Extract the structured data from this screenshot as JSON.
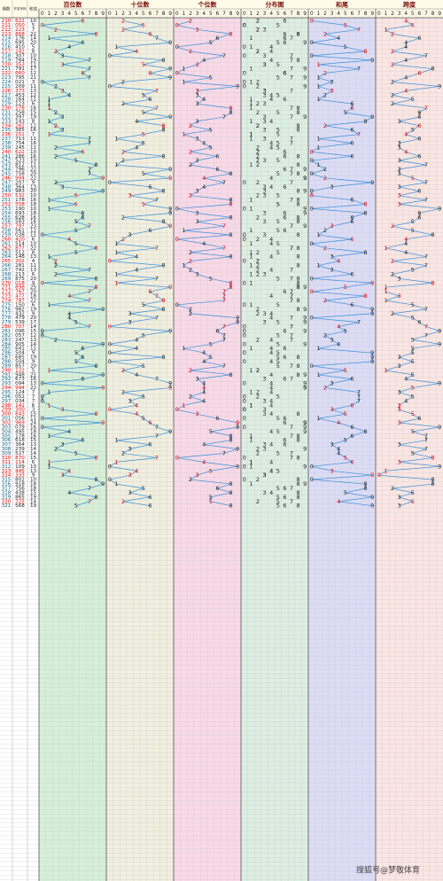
{
  "header": {
    "issue": "期数",
    "number": "开奖号码",
    "sum": "和值",
    "sections": [
      "百位数",
      "十位数",
      "个位数",
      "分布图",
      "和尾",
      "跨度"
    ],
    "digits": [
      "0",
      "1",
      "2",
      "3",
      "4",
      "5",
      "6",
      "7",
      "8",
      "9"
    ]
  },
  "draws": [
    [
      "210",
      "622",
      "10",
      4
    ],
    [
      "211",
      "050",
      "5",
      5
    ],
    [
      "212",
      "223",
      "7",
      1
    ],
    [
      "213",
      "868",
      "22",
      2
    ],
    [
      "214",
      "176",
      "14",
      6
    ],
    [
      "215",
      "695",
      "20",
      4
    ],
    [
      "216",
      "410",
      "5",
      4
    ],
    [
      "217",
      "242",
      "8",
      2
    ],
    [
      "218",
      "307",
      "10",
      7
    ],
    [
      "219",
      "784",
      "19",
      4
    ],
    [
      "220",
      "353",
      "11",
      2
    ],
    [
      "221",
      "791",
      "17",
      8
    ],
    [
      "222",
      "660",
      "12",
      6
    ],
    [
      "223",
      "795",
      "21",
      4
    ],
    [
      "224",
      "021",
      "3",
      2
    ],
    [
      "225",
      "209",
      "11",
      9
    ],
    [
      "226",
      "373",
      "13",
      4
    ],
    [
      "227",
      "453",
      "12",
      2
    ],
    [
      "228",
      "164",
      "11",
      5
    ],
    [
      "229",
      "123",
      "6",
      2
    ],
    [
      "230",
      "178",
      "16",
      7
    ],
    [
      "231",
      "258",
      "15",
      6
    ],
    [
      "232",
      "397",
      "19",
      6
    ],
    [
      "233",
      "143",
      "8",
      3
    ],
    [
      "234",
      "282",
      "12",
      6
    ],
    [
      "235",
      "385",
      "16",
      5
    ],
    [
      "236",
      "151",
      "7",
      4
    ],
    [
      "237",
      "713",
      "11",
      6
    ],
    [
      "238",
      "754",
      "16",
      3
    ],
    [
      "239",
      "245",
      "11",
      3
    ],
    [
      "240",
      "622",
      "10",
      4
    ],
    [
      "241",
      "286",
      "16",
      6
    ],
    [
      "242",
      "523",
      "10",
      3
    ],
    [
      "243",
      "812",
      "11",
      7
    ],
    [
      "244",
      "796",
      "22",
      3
    ],
    [
      "245",
      "758",
      "20",
      3
    ],
    [
      "246",
      "994",
      "22",
      5
    ],
    [
      "247",
      "207",
      "9",
      7
    ],
    [
      "248",
      "364",
      "13",
      3
    ],
    [
      "249",
      "983",
      "20",
      6
    ],
    [
      "250",
      "532",
      "10",
      3
    ],
    [
      "251",
      "178",
      "16",
      7
    ],
    [
      "252",
      "558",
      "18",
      3
    ],
    [
      "253",
      "190",
      "10",
      9
    ],
    [
      "254",
      "693",
      "18",
      6
    ],
    [
      "255",
      "628",
      "16",
      6
    ],
    [
      "256",
      "583",
      "16",
      5
    ],
    [
      "257",
      "797",
      "23",
      2
    ],
    [
      "258",
      "561",
      "12",
      5
    ],
    [
      "259",
      "038",
      "11",
      8
    ],
    [
      "260",
      "420",
      "6",
      4
    ],
    [
      "261",
      "514",
      "10",
      4
    ],
    [
      "262",
      "877",
      "22",
      1
    ],
    [
      "263",
      "512",
      "8",
      4
    ],
    [
      "264",
      "148",
      "13",
      7
    ],
    [
      "265",
      "202",
      "4",
      2
    ],
    [
      "266",
      "281",
      "11",
      7
    ],
    [
      "267",
      "742",
      "13",
      5
    ],
    [
      "268",
      "213",
      "6",
      2
    ],
    [
      "269",
      "875",
      "20",
      3
    ],
    [
      "270",
      "018",
      "9",
      8
    ],
    [
      "271",
      "898",
      "25",
      1
    ],
    [
      "272",
      "767",
      "20",
      1
    ],
    [
      "273",
      "477",
      "18",
      3
    ],
    [
      "274",
      "787",
      "22",
      1
    ],
    [
      "275",
      "150",
      "6",
      5
    ],
    [
      "276",
      "982",
      "19",
      7
    ],
    [
      "277",
      "432",
      "9",
      2
    ],
    [
      "278",
      "479",
      "20",
      5
    ],
    [
      "279",
      "539",
      "17",
      6
    ],
    [
      "280",
      "707",
      "14",
      7
    ],
    [
      "281",
      "096",
      "15",
      9
    ],
    [
      "282",
      "057",
      "12",
      7
    ],
    [
      "283",
      "247",
      "13",
      5
    ],
    [
      "284",
      "905",
      "14",
      9
    ],
    [
      "285",
      "641",
      "11",
      5
    ],
    [
      "286",
      "504",
      "9",
      5
    ],
    [
      "287",
      "685",
      "19",
      3
    ],
    [
      "288",
      "504",
      "9",
      5
    ],
    [
      "289",
      "857",
      "20",
      3
    ],
    [
      "290",
      "122",
      "5",
      1
    ],
    [
      "291",
      "948",
      "21",
      5
    ],
    [
      "292",
      "673",
      "16",
      4
    ],
    [
      "293",
      "094",
      "13",
      9
    ],
    [
      "294",
      "994",
      "22",
      5
    ],
    [
      "295",
      "124",
      "7",
      3
    ],
    [
      "296",
      "052",
      "7",
      5
    ],
    [
      "297",
      "034",
      "7",
      4
    ],
    [
      "298",
      "141",
      "6",
      3
    ],
    [
      "299",
      "300",
      "3",
      3
    ],
    [
      "300",
      "843",
      "15",
      5
    ],
    [
      "301",
      "056",
      "11",
      6
    ],
    [
      "302",
      "969",
      "24",
      3
    ],
    [
      "303",
      "079",
      "16",
      9
    ],
    [
      "304",
      "495",
      "18",
      5
    ],
    [
      "305",
      "178",
      "16",
      7
    ],
    [
      "306",
      "618",
      "15",
      7
    ],
    [
      "307",
      "364",
      "13",
      3
    ],
    [
      "308",
      "239",
      "14",
      7
    ],
    [
      "309",
      "527",
      "14",
      5
    ],
    [
      "310",
      "870",
      "15",
      8
    ],
    [
      "311",
      "114",
      "6",
      3
    ],
    [
      "312",
      "109",
      "10",
      9
    ],
    [
      "313",
      "445",
      "13",
      1
    ],
    [
      "314",
      "333",
      "9",
      0
    ],
    [
      "315",
      "802",
      "10",
      8
    ],
    [
      "316",
      "918",
      "18",
      8
    ],
    [
      "317",
      "756",
      "18",
      2
    ],
    [
      "318",
      "438",
      "15",
      5
    ],
    [
      "319",
      "865",
      "19",
      3
    ],
    [
      "320",
      "725",
      "14",
      5
    ],
    [
      "321",
      "568",
      "19",
      3
    ]
  ],
  "watermark": "搜狐号@梦敬体育"
}
